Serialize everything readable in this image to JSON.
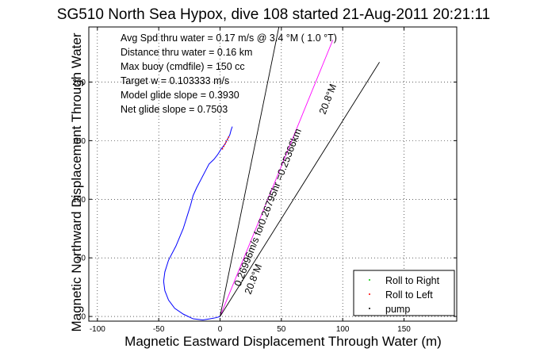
{
  "chart_data": {
    "type": "line",
    "title": "SG510 North Sea Hypox, dive 108 started 21-Aug-2011 20:21:11",
    "xlabel": "Magnetic Eastward Displacement Through Water (m)",
    "ylabel": "Magnetic Northward Displacement Through Water",
    "xlim": [
      -107,
      193
    ],
    "ylim": [
      -4,
      247
    ],
    "xticks": [
      -100,
      -50,
      0,
      50,
      100,
      150
    ],
    "yticks": [
      0,
      50,
      100,
      150,
      200
    ],
    "grid": true,
    "legend_position": "bottom-right",
    "legend": [
      "Roll to Right",
      "Roll to Left",
      "pump"
    ],
    "info_lines": [
      "Avg Spd thru water =  0.17 m/s @   3.4   °M (  1.0 °T)",
      "Distance thru water =  0.16 km",
      "Max buoy (cmdfile) = 150 cc",
      "Target w = 0.103333 m/s",
      "Model glide slope = 0.3930",
      "Net glide slope = 0.7503"
    ],
    "annotations": [
      "0.26996m/s for0.26795hr =0.25366km",
      "20.8°M",
      "20.8°M"
    ],
    "series": [
      {
        "name": "track",
        "color": "#0000ff",
        "x": [
          0,
          -3,
          -8,
          -14,
          -22,
          -30,
          -37,
          -42,
          -45,
          -46,
          -45,
          -42,
          -36,
          -30,
          -27,
          -24,
          -22,
          -19,
          -15,
          -12,
          -9,
          -5,
          -2,
          1,
          4,
          6,
          8,
          9,
          10
        ],
        "y": [
          0,
          -1,
          -2,
          -3,
          -2,
          2,
          7,
          14,
          22,
          30,
          38,
          48,
          60,
          75,
          85,
          95,
          103,
          110,
          118,
          124,
          130,
          134,
          138,
          143,
          147,
          151,
          155,
          159,
          162
        ]
      },
      {
        "name": "heading line",
        "color": "#ff00ff",
        "x": [
          0,
          92
        ],
        "y": [
          0,
          236
        ]
      },
      {
        "name": "line 1",
        "color": "#000000",
        "x": [
          0,
          48
        ],
        "y": [
          0,
          247
        ]
      },
      {
        "name": "line 2",
        "color": "#000000",
        "x": [
          0,
          130
        ],
        "y": [
          0,
          217
        ]
      }
    ],
    "roll_left_points": {
      "color": "#ff0000",
      "x": [
        2,
        3,
        4,
        5,
        6,
        7
      ],
      "y": [
        143,
        145,
        147,
        149,
        151,
        153
      ]
    }
  }
}
